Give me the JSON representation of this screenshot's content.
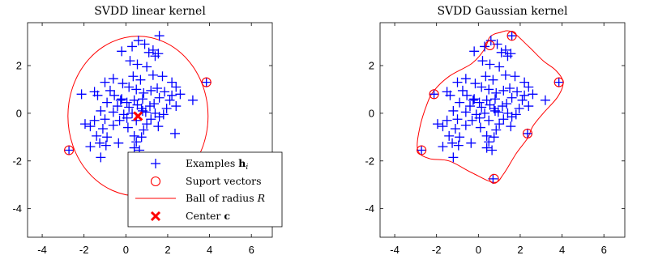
{
  "chart_data": [
    {
      "type": "scatter",
      "title": "SVDD linear kernel",
      "xlabel": "",
      "ylabel": "",
      "xlim": [
        -4.7,
        7
      ],
      "ylim": [
        -5.2,
        3.8
      ],
      "xticks": [
        -4,
        -2,
        0,
        2,
        4,
        6
      ],
      "yticks": [
        2,
        0,
        -2,
        -4
      ],
      "grid": false,
      "legend_position": "bottom-right",
      "legend": {
        "examples_prefix": "Examples ",
        "examples_bold": "h",
        "examples_sub": "i",
        "support_vectors": "Suport vectors",
        "ball_prefix": "Ball of radius ",
        "ball_var": "R",
        "center_prefix": "Center ",
        "center_bold": "c"
      },
      "colors": {
        "examples": "#0000ff",
        "support": "#ff0000",
        "boundary": "#ff0000",
        "center": "#ff0000"
      },
      "boundary": {
        "shape": "circle",
        "center": [
          0.58,
          -0.12
        ],
        "radius": 3.35
      },
      "center_point": [
        0.58,
        -0.12
      ],
      "support_vectors": [
        [
          3.85,
          1.3
        ],
        [
          -2.72,
          -1.55
        ]
      ]
    },
    {
      "type": "scatter",
      "title": "SVDD Gaussian kernel",
      "xlabel": "",
      "ylabel": "",
      "xlim": [
        -4.7,
        7
      ],
      "ylim": [
        -5.2,
        3.8
      ],
      "xticks": [
        -4,
        -2,
        0,
        2,
        4,
        6
      ],
      "yticks": [
        2,
        0,
        -2,
        -4
      ],
      "grid": false,
      "colors": {
        "examples": "#0000ff",
        "support": "#ff0000",
        "boundary": "#ff0000"
      },
      "support_vectors": [
        [
          0.55,
          2.85
        ],
        [
          1.6,
          3.25
        ],
        [
          3.85,
          1.3
        ],
        [
          2.35,
          -0.85
        ],
        [
          0.75,
          -2.75
        ],
        [
          -2.72,
          -1.55
        ],
        [
          -2.12,
          0.8
        ]
      ],
      "boundary_points": [
        [
          0.3,
          2.7
        ],
        [
          0.55,
          3.2
        ],
        [
          1.0,
          3.38
        ],
        [
          1.6,
          3.42
        ],
        [
          2.4,
          2.8
        ],
        [
          3.1,
          2.2
        ],
        [
          3.7,
          1.8
        ],
        [
          4.05,
          1.3
        ],
        [
          3.8,
          0.7
        ],
        [
          3.1,
          0.0
        ],
        [
          2.6,
          -0.55
        ],
        [
          2.35,
          -1.05
        ],
        [
          1.8,
          -1.7
        ],
        [
          1.2,
          -2.55
        ],
        [
          0.75,
          -2.9
        ],
        [
          -0.3,
          -2.5
        ],
        [
          -1.4,
          -2.0
        ],
        [
          -2.35,
          -1.9
        ],
        [
          -2.9,
          -1.55
        ],
        [
          -2.8,
          -0.6
        ],
        [
          -2.45,
          0.4
        ],
        [
          -2.12,
          0.95
        ],
        [
          -1.4,
          1.55
        ],
        [
          -0.3,
          2.1
        ]
      ]
    }
  ],
  "examples": [
    [
      -0.2,
      2.6
    ],
    [
      0.3,
      2.8
    ],
    [
      0.6,
      3.05
    ],
    [
      0.9,
      2.9
    ],
    [
      1.1,
      2.55
    ],
    [
      1.4,
      2.4
    ],
    [
      1.55,
      2.5
    ],
    [
      1.6,
      3.25
    ],
    [
      1.3,
      2.65
    ],
    [
      0.2,
      2.2
    ],
    [
      0.55,
      2.05
    ],
    [
      1.0,
      1.95
    ],
    [
      0.35,
      1.55
    ],
    [
      0.7,
      1.4
    ],
    [
      1.3,
      1.6
    ],
    [
      1.75,
      1.55
    ],
    [
      2.2,
      1.3
    ],
    [
      2.4,
      1.1
    ],
    [
      3.85,
      1.3
    ],
    [
      3.2,
      0.55
    ],
    [
      2.6,
      0.8
    ],
    [
      2.2,
      0.75
    ],
    [
      1.85,
      0.9
    ],
    [
      1.5,
      1.05
    ],
    [
      1.2,
      0.95
    ],
    [
      0.85,
      0.85
    ],
    [
      0.5,
      1.0
    ],
    [
      0.15,
      1.1
    ],
    [
      -0.15,
      1.25
    ],
    [
      -0.6,
      1.45
    ],
    [
      -1.0,
      1.3
    ],
    [
      -1.5,
      0.9
    ],
    [
      -2.12,
      0.8
    ],
    [
      -1.35,
      0.75
    ],
    [
      -0.55,
      0.75
    ],
    [
      -0.2,
      0.6
    ],
    [
      0.05,
      0.45
    ],
    [
      0.4,
      0.55
    ],
    [
      0.8,
      0.6
    ],
    [
      1.6,
      0.65
    ],
    [
      2.1,
      0.55
    ],
    [
      2.4,
      0.3
    ],
    [
      -0.9,
      0.45
    ],
    [
      -0.4,
      0.3
    ],
    [
      0.15,
      0.25
    ],
    [
      0.75,
      0.2
    ],
    [
      1.15,
      0.3
    ],
    [
      1.95,
      0.2
    ],
    [
      -1.2,
      0.1
    ],
    [
      -0.6,
      0.05
    ],
    [
      -0.1,
      -0.05
    ],
    [
      0.3,
      0.0
    ],
    [
      0.95,
      0.05
    ],
    [
      1.4,
      0.0
    ],
    [
      1.8,
      -0.05
    ],
    [
      -1.95,
      -0.45
    ],
    [
      -1.5,
      -0.3
    ],
    [
      -1.0,
      -0.25
    ],
    [
      -0.3,
      -0.3
    ],
    [
      0.5,
      -0.3
    ],
    [
      1.2,
      -0.25
    ],
    [
      1.6,
      -0.15
    ],
    [
      -1.7,
      -0.55
    ],
    [
      -1.1,
      -0.65
    ],
    [
      -0.6,
      -0.5
    ],
    [
      0.1,
      -0.6
    ],
    [
      0.85,
      -0.7
    ],
    [
      1.55,
      -0.55
    ],
    [
      2.35,
      -0.85
    ],
    [
      -1.4,
      -0.95
    ],
    [
      -0.9,
      -1.0
    ],
    [
      0.4,
      -0.95
    ],
    [
      0.75,
      -1.0
    ],
    [
      -1.25,
      -1.25
    ],
    [
      -0.35,
      -1.25
    ],
    [
      0.5,
      -1.2
    ],
    [
      -0.95,
      -1.35
    ],
    [
      -1.7,
      -1.4
    ],
    [
      -2.72,
      -1.55
    ],
    [
      0.4,
      -1.45
    ],
    [
      0.65,
      -1.55
    ],
    [
      -1.2,
      -1.85
    ],
    [
      0.7,
      -2.75
    ],
    [
      0.8,
      0.1
    ],
    [
      -0.25,
      0.55
    ],
    [
      0.05,
      -0.2
    ],
    [
      1.35,
      0.4
    ],
    [
      -0.75,
      0.95
    ],
    [
      0.55,
      0.35
    ],
    [
      1.0,
      -0.45
    ]
  ]
}
